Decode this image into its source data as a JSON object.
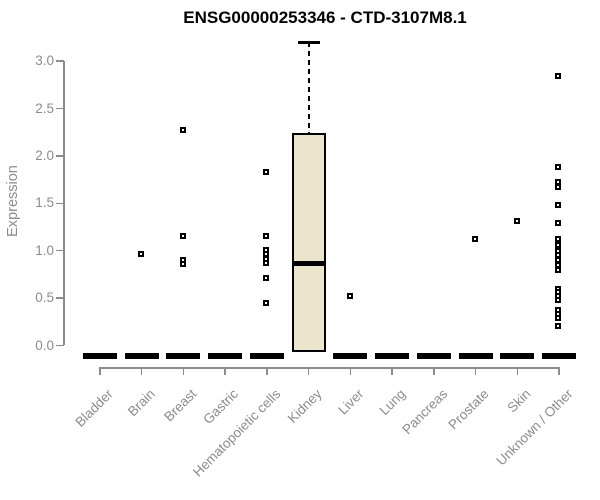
{
  "chart_data": {
    "type": "boxplot",
    "title": "ENSG00000253346 - CTD-3107M8.1",
    "ylabel": "Expression",
    "ylim": [
      0,
      3.2
    ],
    "yticks": [
      0.0,
      0.5,
      1.0,
      1.5,
      2.0,
      2.5,
      3.0
    ],
    "grid": false,
    "legend": "none",
    "categories": [
      "Bladder",
      "Brain",
      "Breast",
      "Gastric",
      "Hematopoietic cells",
      "Kidney",
      "Liver",
      "Lung",
      "Pancreas",
      "Prostate",
      "Skin",
      "Unknown / Other"
    ],
    "boxes": [
      {
        "category": "Bladder",
        "q1": 0,
        "median": 0,
        "q3": 0,
        "whisker_low": 0,
        "whisker_high": 0,
        "outliers": []
      },
      {
        "category": "Brain",
        "q1": 0,
        "median": 0,
        "q3": 0,
        "whisker_low": 0,
        "whisker_high": 0,
        "outliers": [
          0.97
        ]
      },
      {
        "category": "Breast",
        "q1": 0,
        "median": 0,
        "q3": 0,
        "whisker_low": 0,
        "whisker_high": 0,
        "outliers": [
          2.27,
          1.16,
          0.9,
          0.86
        ]
      },
      {
        "category": "Gastric",
        "q1": 0,
        "median": 0,
        "q3": 0,
        "whisker_low": 0,
        "whisker_high": 0,
        "outliers": []
      },
      {
        "category": "Hematopoietic cells",
        "q1": 0,
        "median": 0,
        "q3": 0,
        "whisker_low": 0,
        "whisker_high": 0,
        "outliers": [
          1.83,
          1.16,
          1.01,
          0.96,
          0.91,
          0.87,
          0.71,
          0.45
        ]
      },
      {
        "category": "Kidney",
        "q1": 0,
        "median": 0.87,
        "q3": 2.24,
        "whisker_low": 0,
        "whisker_high": 3.2,
        "outliers": []
      },
      {
        "category": "Liver",
        "q1": 0,
        "median": 0,
        "q3": 0,
        "whisker_low": 0,
        "whisker_high": 0,
        "outliers": [
          0.52
        ]
      },
      {
        "category": "Lung",
        "q1": 0,
        "median": 0,
        "q3": 0,
        "whisker_low": 0,
        "whisker_high": 0,
        "outliers": []
      },
      {
        "category": "Pancreas",
        "q1": 0,
        "median": 0,
        "q3": 0,
        "whisker_low": 0,
        "whisker_high": 0,
        "outliers": []
      },
      {
        "category": "Prostate",
        "q1": 0,
        "median": 0,
        "q3": 0,
        "whisker_low": 0,
        "whisker_high": 0,
        "outliers": [
          1.12
        ]
      },
      {
        "category": "Skin",
        "q1": 0,
        "median": 0,
        "q3": 0,
        "whisker_low": 0,
        "whisker_high": 0,
        "outliers": [
          1.31
        ]
      },
      {
        "category": "Unknown / Other",
        "q1": 0,
        "median": 0,
        "q3": 0,
        "whisker_low": 0,
        "whisker_high": 0,
        "outliers": [
          2.84,
          1.88,
          1.72,
          1.67,
          1.48,
          1.29,
          1.12,
          1.06,
          1.0,
          0.95,
          0.9,
          0.85,
          0.8,
          0.6,
          0.56,
          0.52,
          0.48,
          0.37,
          0.33,
          0.29,
          0.21
        ]
      }
    ],
    "colors": {
      "box_fill": "#EBE5CB",
      "box_border": "#000000",
      "median": "#000000",
      "outlier": "#000000",
      "axis": "#8c8c8c",
      "tick_text": "#8c8c8c",
      "title_text": "#000000",
      "background": "#ffffff"
    }
  }
}
